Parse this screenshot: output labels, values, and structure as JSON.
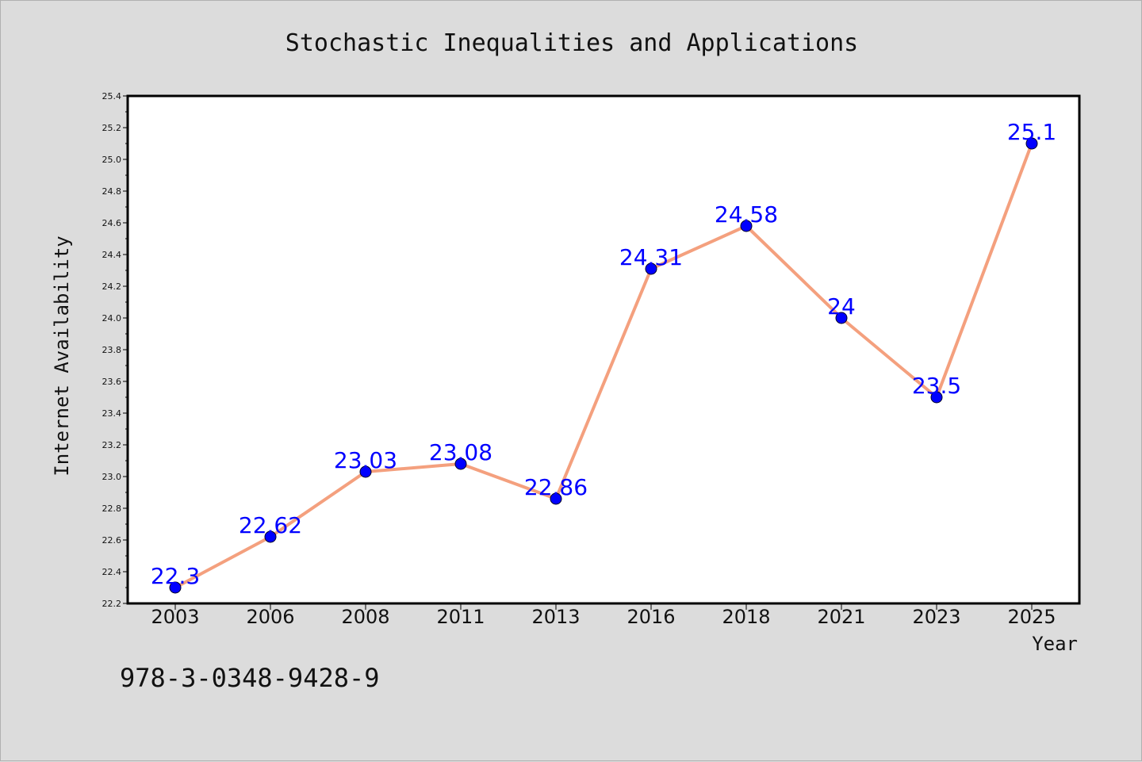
{
  "chart_data": {
    "type": "line",
    "title": "Stochastic Inequalities and Applications",
    "xlabel": "Year",
    "ylabel": "Internet Availability",
    "categories": [
      "2003",
      "2006",
      "2008",
      "2011",
      "2013",
      "2016",
      "2018",
      "2021",
      "2023",
      "2025"
    ],
    "series": [
      {
        "values": [
          22.3,
          22.62,
          23.03,
          23.08,
          22.86,
          24.31,
          24.58,
          24.0,
          23.5,
          25.1
        ],
        "labels": [
          "22.3",
          "22.62",
          "23.03",
          "23.08",
          "22.86",
          "24.31",
          "24.58",
          "24",
          "23.5",
          "25.1"
        ],
        "line_color": "#f4a07e",
        "marker_color": "#0000ff"
      }
    ],
    "ylim": [
      22.2,
      25.4
    ],
    "yticks": [
      "22.2",
      "22.4",
      "22.6",
      "22.8",
      "23.0",
      "23.2",
      "23.4",
      "23.6",
      "23.8",
      "24.0",
      "24.2",
      "24.4",
      "24.6",
      "24.8",
      "25.0",
      "25.2",
      "25.4"
    ],
    "grid": false,
    "legend": "none"
  },
  "annotation": {
    "isbn": "978-3-0348-9428-9"
  },
  "colors": {
    "background": "#dcdcdc",
    "plot_background": "#ffffff",
    "line": "#f4a07e",
    "marker": "#0000ff",
    "data_label": "#0000ff"
  }
}
